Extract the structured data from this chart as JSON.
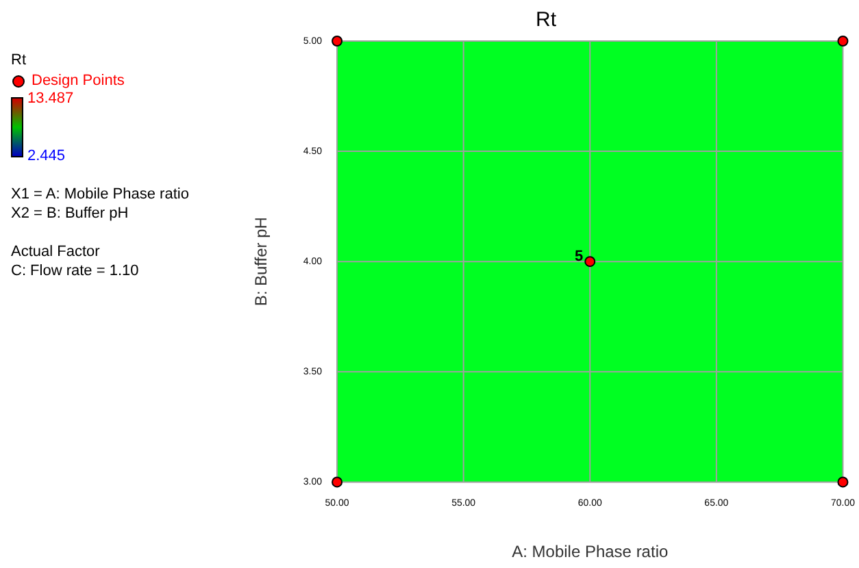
{
  "chart_data": {
    "type": "scatter",
    "title": "Rt",
    "xlabel": "A: Mobile Phase ratio",
    "ylabel": "B: Buffer pH",
    "clabel": "Rt",
    "clim": [
      2.445,
      13.487
    ],
    "cticks": [
      {
        "value": 13.487,
        "label": "13.487"
      },
      {
        "value": 2.445,
        "label": "2.445"
      }
    ],
    "xlim": [
      50,
      70
    ],
    "ylim": [
      3,
      5
    ],
    "xticks": [
      {
        "value": 50,
        "label": "50.00"
      },
      {
        "value": 55,
        "label": "55.00"
      },
      {
        "value": 60,
        "label": "60.00"
      },
      {
        "value": 65,
        "label": "65.00"
      },
      {
        "value": 70,
        "label": "70.00"
      }
    ],
    "yticks": [
      {
        "value": 3,
        "label": "3.00"
      },
      {
        "value": 3.5,
        "label": "3.50"
      },
      {
        "value": 4,
        "label": "4.00"
      },
      {
        "value": 4.5,
        "label": "4.50"
      },
      {
        "value": 5,
        "label": "5.00"
      }
    ],
    "series": [
      {
        "name": "Design Points",
        "color": "#ff0000",
        "x": [
          50,
          50,
          70,
          70,
          60
        ],
        "values": [
          3,
          5,
          3,
          5,
          4
        ]
      }
    ],
    "bands": [
      {
        "axis": "x",
        "from": 50,
        "to": 70,
        "color": "#00ff22"
      }
    ],
    "annotations": [
      "X1 = A: Mobile Phase ratio",
      "X2 = B: Buffer pH",
      "Actual Factor",
      "C: Flow rate = 1.10",
      {
        "text": "5",
        "x": 60,
        "y": 4
      }
    ],
    "grid": true,
    "legend": "left",
    "marker": "circle"
  }
}
